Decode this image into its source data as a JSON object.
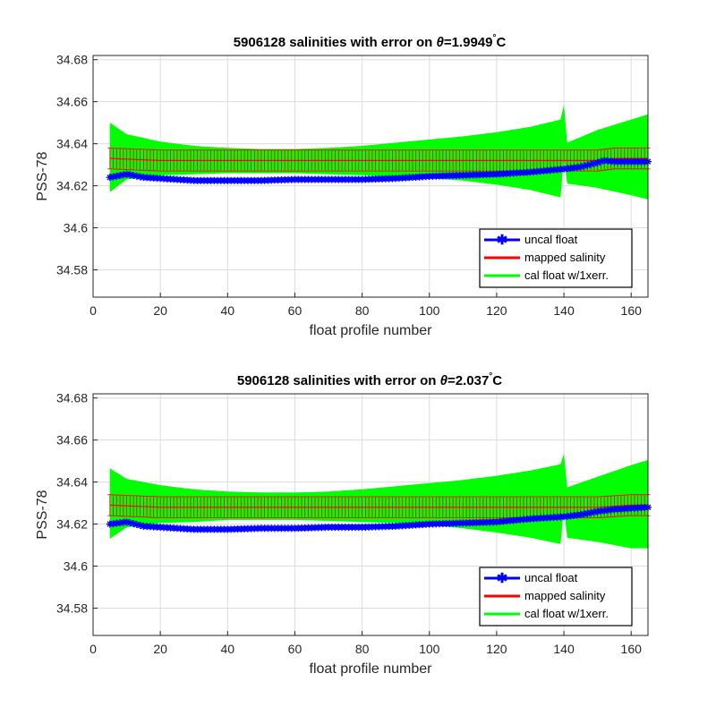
{
  "colors": {
    "uncal": "#0000ff",
    "mapped": "#ff0000",
    "cal": "#00ff00"
  },
  "chart_data": [
    {
      "type": "line",
      "title_prefix": "5906128 salinities with error on ",
      "theta_symbol": "θ",
      "theta_value": "=1.9949",
      "degree_mark": "°",
      "title_unit": "C",
      "xlabel": "float profile number",
      "ylabel": "PSS-78",
      "xlim": [
        0,
        165
      ],
      "ylim": [
        34.567,
        34.682
      ],
      "xticks": [
        0,
        20,
        40,
        60,
        80,
        100,
        120,
        140,
        160
      ],
      "xtick_labels": [
        "0",
        "20",
        "40",
        "60",
        "80",
        "100",
        "120",
        "140",
        "160"
      ],
      "yticks": [
        34.58,
        34.6,
        34.62,
        34.64,
        34.66,
        34.68
      ],
      "ytick_labels": [
        "34.58",
        "34.6",
        "34.62",
        "34.64",
        "34.66",
        "34.68"
      ],
      "grid": true,
      "legend_position": "bottom-right",
      "legend": [
        "uncal float",
        "mapped salinity",
        "cal float w/1xerr."
      ],
      "uncal_float": {
        "x": [
          5,
          10,
          15,
          20,
          25,
          30,
          40,
          50,
          60,
          70,
          80,
          90,
          100,
          110,
          120,
          130,
          140,
          145,
          150,
          152,
          155,
          160,
          165
        ],
        "y": [
          34.624,
          34.6255,
          34.624,
          34.6235,
          34.623,
          34.6225,
          34.6225,
          34.6225,
          34.623,
          34.623,
          34.623,
          34.6235,
          34.6245,
          34.625,
          34.6255,
          34.6265,
          34.628,
          34.629,
          34.631,
          34.632,
          34.6315,
          34.6315,
          34.6315
        ]
      },
      "mapped_salinity": {
        "x": [
          5,
          20,
          40,
          60,
          80,
          100,
          120,
          140,
          150,
          155,
          165
        ],
        "y": [
          34.633,
          34.632,
          34.632,
          34.632,
          34.632,
          34.632,
          34.632,
          34.632,
          34.632,
          34.633,
          34.633
        ],
        "err": [
          0.005,
          0.005,
          0.005,
          0.005,
          0.005,
          0.005,
          0.005,
          0.005,
          0.005,
          0.005,
          0.005
        ]
      },
      "cal_float_band": {
        "x": [
          5,
          10,
          20,
          30,
          40,
          50,
          60,
          70,
          80,
          90,
          100,
          110,
          120,
          130,
          139,
          140,
          141,
          150,
          160,
          165
        ],
        "lower": [
          34.617,
          34.623,
          34.625,
          34.6255,
          34.626,
          34.626,
          34.626,
          34.6255,
          34.625,
          34.624,
          34.6235,
          34.6225,
          34.6205,
          34.618,
          34.6145,
          34.6335,
          34.621,
          34.619,
          34.6155,
          34.6135
        ],
        "upper": [
          34.65,
          34.6445,
          34.641,
          34.639,
          34.638,
          34.6375,
          34.6375,
          34.638,
          34.639,
          34.6405,
          34.642,
          34.6435,
          34.6455,
          34.648,
          34.6515,
          34.6585,
          34.6405,
          34.6465,
          34.6515,
          34.654
        ]
      }
    },
    {
      "type": "line",
      "title_prefix": "5906128 salinities with error on ",
      "theta_symbol": "θ",
      "theta_value": "=2.037",
      "degree_mark": "°",
      "title_unit": "C",
      "xlabel": "float profile number",
      "ylabel": "PSS-78",
      "xlim": [
        0,
        165
      ],
      "ylim": [
        34.567,
        34.682
      ],
      "xticks": [
        0,
        20,
        40,
        60,
        80,
        100,
        120,
        140,
        160
      ],
      "xtick_labels": [
        "0",
        "20",
        "40",
        "60",
        "80",
        "100",
        "120",
        "140",
        "160"
      ],
      "yticks": [
        34.58,
        34.6,
        34.62,
        34.64,
        34.66,
        34.68
      ],
      "ytick_labels": [
        "34.58",
        "34.6",
        "34.62",
        "34.64",
        "34.66",
        "34.68"
      ],
      "grid": true,
      "legend_position": "bottom-right",
      "legend": [
        "uncal float",
        "mapped salinity",
        "cal float w/1xerr."
      ],
      "uncal_float": {
        "x": [
          5,
          10,
          15,
          20,
          25,
          30,
          40,
          50,
          60,
          70,
          80,
          90,
          100,
          110,
          120,
          130,
          140,
          145,
          150,
          155,
          160,
          165
        ],
        "y": [
          34.62,
          34.621,
          34.619,
          34.6185,
          34.618,
          34.6175,
          34.6175,
          34.618,
          34.618,
          34.6185,
          34.6185,
          34.619,
          34.62,
          34.6205,
          34.621,
          34.6225,
          34.6235,
          34.6245,
          34.626,
          34.627,
          34.6275,
          34.628
        ]
      },
      "mapped_salinity": {
        "x": [
          5,
          20,
          40,
          60,
          80,
          100,
          120,
          140,
          150,
          160,
          165
        ],
        "y": [
          34.629,
          34.628,
          34.628,
          34.628,
          34.628,
          34.628,
          34.628,
          34.628,
          34.628,
          34.629,
          34.629
        ],
        "err": [
          0.005,
          0.005,
          0.005,
          0.005,
          0.005,
          0.005,
          0.005,
          0.005,
          0.005,
          0.005,
          0.005
        ]
      },
      "cal_float_band": {
        "x": [
          5,
          10,
          20,
          30,
          40,
          50,
          60,
          70,
          80,
          90,
          100,
          110,
          120,
          130,
          139,
          140,
          141,
          150,
          160,
          165
        ],
        "lower": [
          34.613,
          34.6185,
          34.6205,
          34.621,
          34.622,
          34.622,
          34.622,
          34.6215,
          34.621,
          34.6205,
          34.6195,
          34.618,
          34.616,
          34.6135,
          34.6105,
          34.6275,
          34.6135,
          34.6115,
          34.6085,
          34.6085
        ],
        "upper": [
          34.6465,
          34.6415,
          34.6385,
          34.6365,
          34.6355,
          34.635,
          34.635,
          34.6355,
          34.6365,
          34.638,
          34.6395,
          34.641,
          34.643,
          34.6455,
          34.6485,
          34.6535,
          34.6375,
          34.6425,
          34.648,
          34.6505
        ]
      }
    }
  ]
}
